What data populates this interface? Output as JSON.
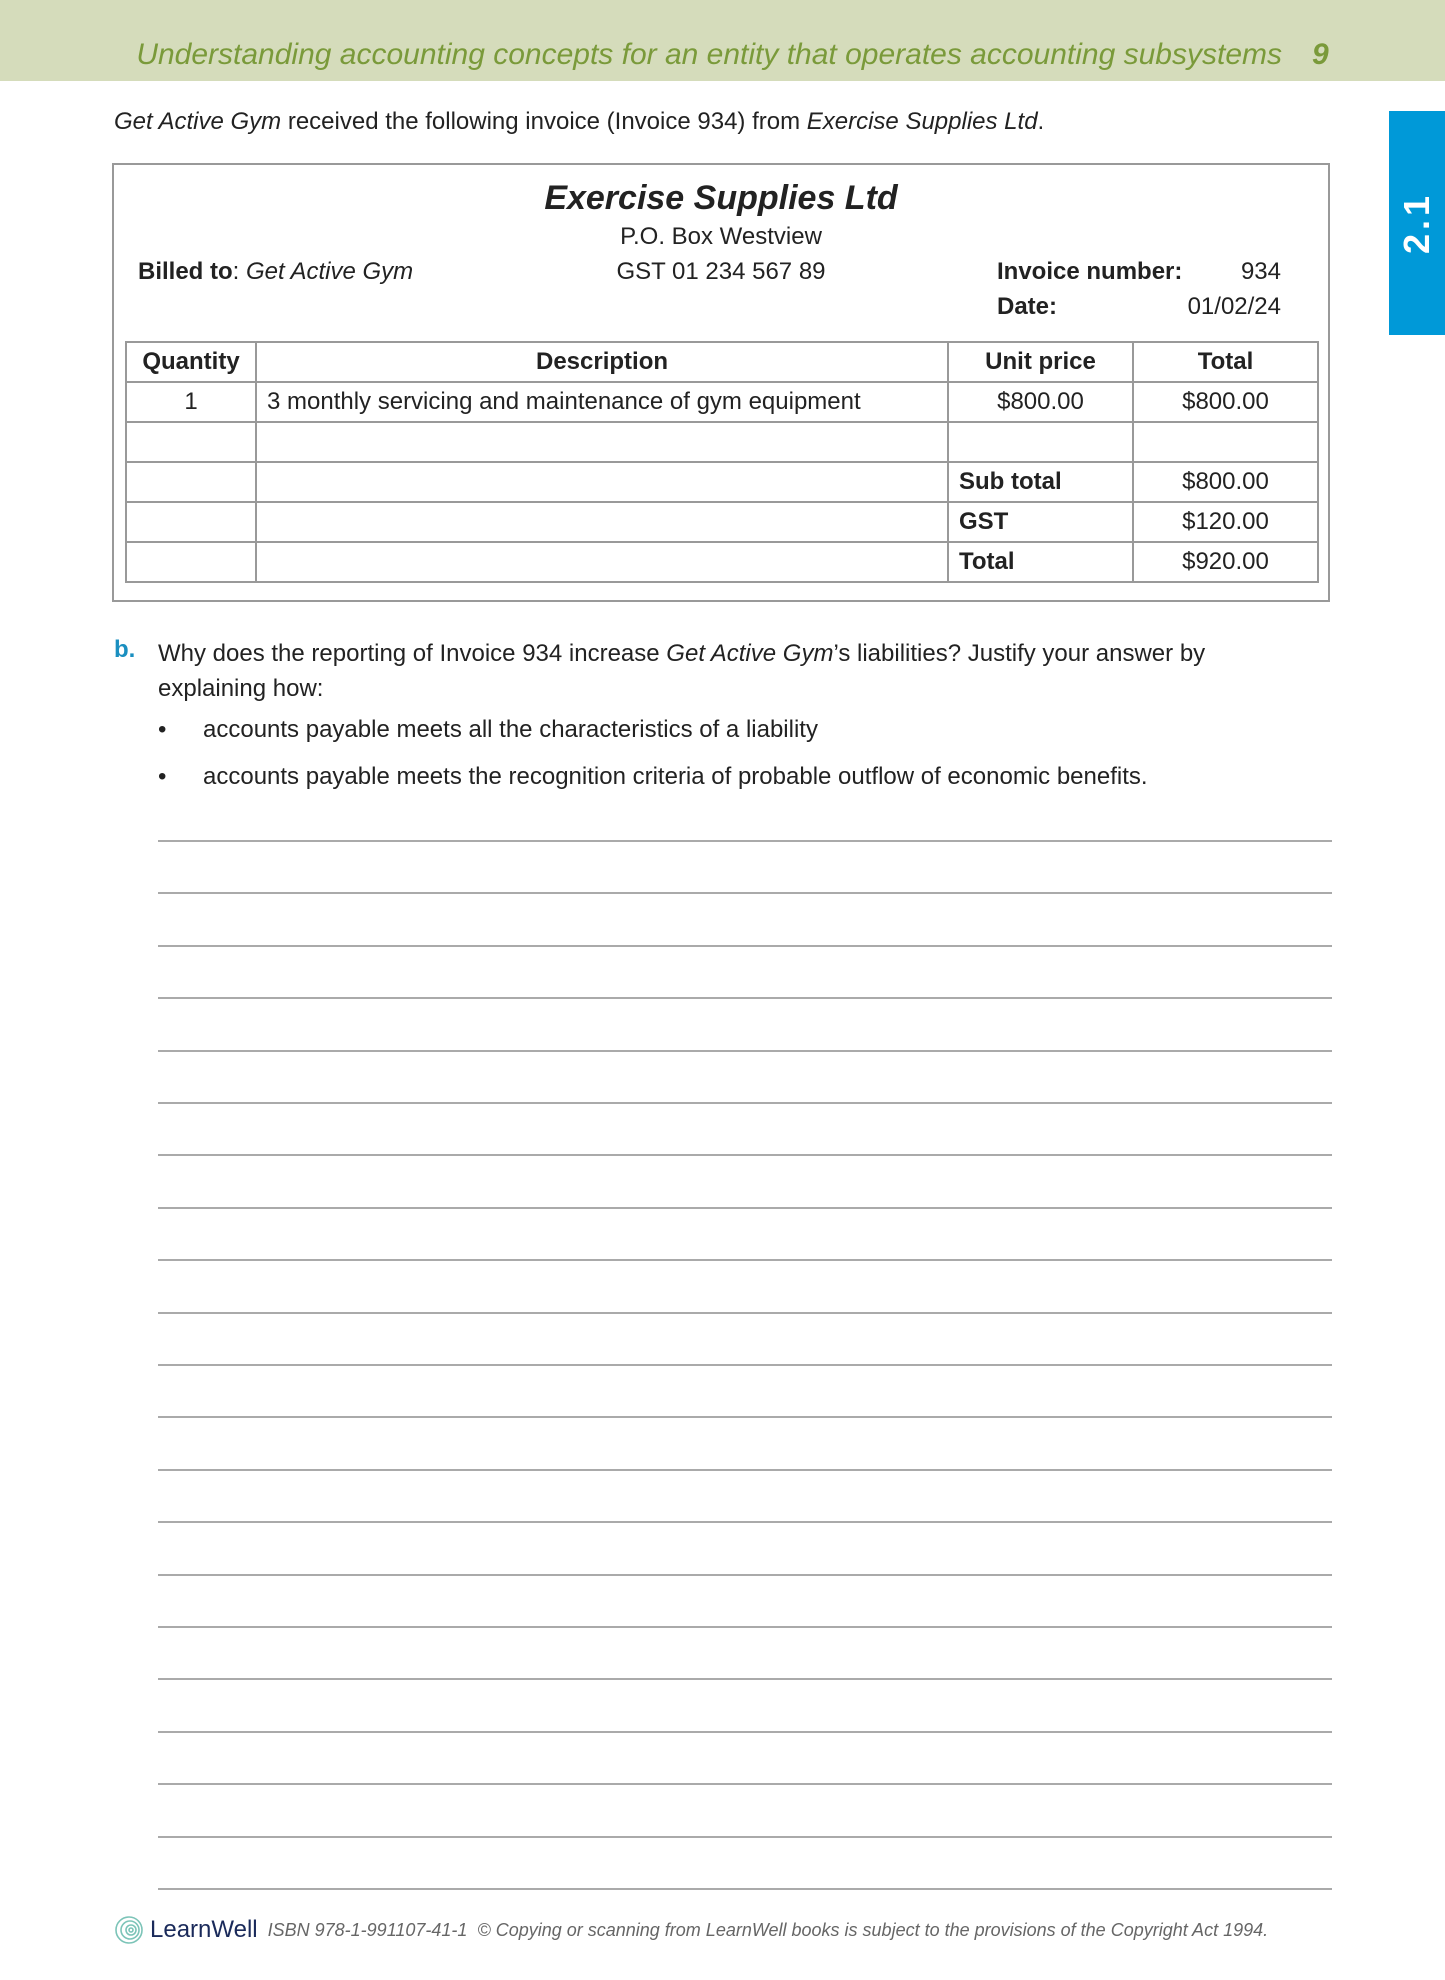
{
  "header": {
    "title": "Understanding accounting concepts for an entity that operates accounting subsystems",
    "page_number": "9"
  },
  "section_tab": "2.1",
  "intro": {
    "part1": "Get Active Gym",
    "part2": " received the following invoice (Invoice 934) from ",
    "part3": "Exercise Supplies Ltd",
    "part4": "."
  },
  "invoice": {
    "company": "Exercise Supplies Ltd",
    "address": "P.O. Box Westview",
    "gst": "GST 01 234 567 89",
    "billed_label": "Billed to",
    "billed_value": "Get Active Gym",
    "number_label": "Invoice number:",
    "number_value": "934",
    "date_label": "Date:",
    "date_value": "01/02/24",
    "columns": [
      "Quantity",
      "Description",
      "Unit price",
      "Total"
    ],
    "row": {
      "quantity": "1",
      "description": "3 monthly servicing and maintenance of gym equipment",
      "unit_price": "$800.00",
      "total": "$800.00"
    },
    "subtotal_label": "Sub total",
    "subtotal": "$800.00",
    "gst_label": "GST",
    "gst_amount": "$120.00",
    "total_label": "Total",
    "total": "$920.00"
  },
  "question": {
    "label": "b.",
    "text_a": "Why does the reporting of Invoice 934 increase ",
    "text_b": "Get Active Gym",
    "text_c": "’s liabilities? Justify your answer by explaining how:",
    "bullets": [
      "accounts payable meets all the characteristics of a liability",
      "accounts payable meets the recognition criteria of probable outflow of economic benefits."
    ]
  },
  "footer": {
    "brand": "LearnWell",
    "isbn": "ISBN 978-1-991107-41-1",
    "copyright": "© Copying or scanning from LearnWell books is subject to the provisions of the Copyright Act 1994."
  }
}
